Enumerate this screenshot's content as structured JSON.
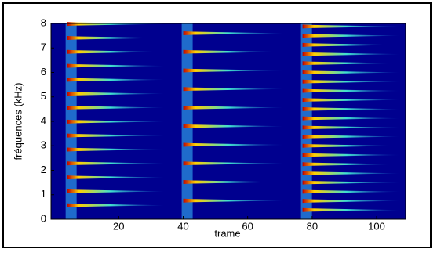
{
  "chart_data": {
    "type": "spectrogram",
    "xlabel": "trame",
    "ylabel": "fréquences (kHz)",
    "xlim": [
      -1,
      109
    ],
    "ylim": [
      0,
      8
    ],
    "xticks": [
      20,
      40,
      60,
      80,
      100
    ],
    "yticks": [
      0,
      1,
      2,
      3,
      4,
      5,
      6,
      7,
      8
    ],
    "background": "#00008f",
    "onset_color": "#2a8fe0",
    "colors": [
      "#c00000",
      "#ffd000",
      "#40e0d0",
      "#1040c0"
    ],
    "notes": [
      {
        "start": 5,
        "end": 34,
        "harmonics": [
          0.57,
          1.14,
          1.71,
          2.28,
          2.85,
          3.42,
          3.99,
          4.56,
          5.13,
          5.7,
          6.27,
          6.84,
          7.41,
          7.98
        ]
      },
      {
        "start": 41,
        "end": 71,
        "harmonics": [
          0.76,
          1.52,
          2.28,
          3.04,
          3.8,
          4.56,
          5.32,
          6.08,
          6.84,
          7.6
        ]
      },
      {
        "start": 78,
        "end": 107,
        "harmonics": [
          0.375,
          0.75,
          1.125,
          1.5,
          1.875,
          2.25,
          2.625,
          3.0,
          3.375,
          3.75,
          4.125,
          4.5,
          4.875,
          5.25,
          5.625,
          6.0,
          6.375,
          6.75,
          7.125,
          7.5,
          7.875
        ]
      }
    ]
  }
}
